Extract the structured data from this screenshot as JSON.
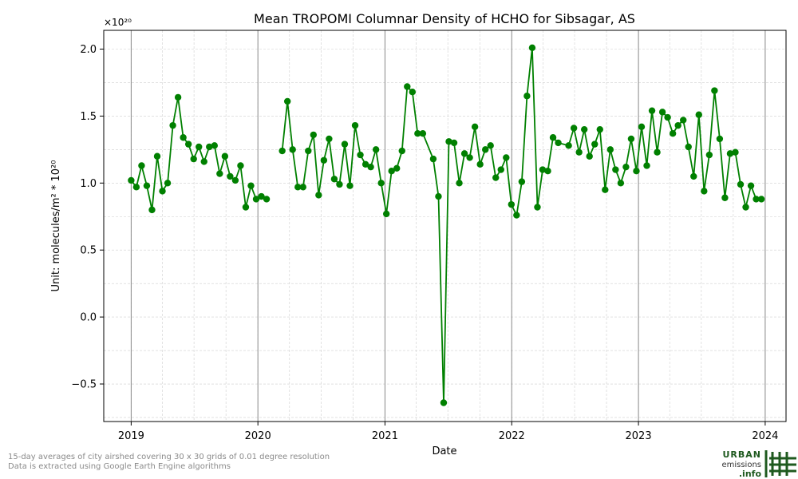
{
  "chart_data": {
    "type": "line",
    "title": "Mean TROPOMI Columnar Density of HCHO for Sibsagar, AS",
    "xlabel": "Date",
    "ylabel": "Unit: molecules/m² * 10²⁰",
    "y_offset_text": "×10²⁰",
    "xlim": [
      "2018-10-14",
      "2024-03-01"
    ],
    "ylim": [
      -0.78,
      2.14
    ],
    "x_ticks": [
      "2019",
      "2020",
      "2021",
      "2022",
      "2023",
      "2024"
    ],
    "y_ticks": [
      "−0.5",
      "0.0",
      "0.5",
      "1.0",
      "1.5",
      "2.0"
    ],
    "grid": true,
    "line_color": "#008000",
    "series": [
      {
        "segments": [
          {
            "dates": [
              "2019-01-01",
              "2019-01-16",
              "2019-01-31",
              "2019-02-15",
              "2019-03-02",
              "2019-03-17",
              "2019-04-01",
              "2019-04-16",
              "2019-05-01",
              "2019-05-16",
              "2019-05-31",
              "2019-06-15",
              "2019-06-30",
              "2019-07-15",
              "2019-07-30",
              "2019-08-14",
              "2019-08-29",
              "2019-09-13",
              "2019-09-28",
              "2019-10-13",
              "2019-10-28",
              "2019-11-12",
              "2019-11-27",
              "2019-12-12",
              "2019-12-27",
              "2020-01-11",
              "2020-01-26"
            ],
            "values": [
              1.02,
              0.97,
              1.13,
              0.98,
              0.8,
              1.2,
              0.94,
              1.0,
              1.43,
              1.64,
              1.34,
              1.29,
              1.18,
              1.27,
              1.16,
              1.27,
              1.28,
              1.07,
              1.2,
              1.05,
              1.02,
              1.13,
              0.82,
              0.98,
              0.88,
              0.9,
              0.88
            ]
          },
          {
            "dates": [
              "2020-03-11",
              "2020-03-26",
              "2020-04-10",
              "2020-04-25",
              "2020-05-10",
              "2020-05-25",
              "2020-06-09",
              "2020-06-24",
              "2020-07-09",
              "2020-07-24",
              "2020-08-08",
              "2020-08-23",
              "2020-09-07",
              "2020-09-22",
              "2020-10-07",
              "2020-10-22",
              "2020-11-06",
              "2020-11-21",
              "2020-12-06",
              "2020-12-21",
              "2021-01-05",
              "2021-01-20",
              "2021-02-04",
              "2021-02-19",
              "2021-03-06",
              "2021-03-21",
              "2021-04-05",
              "2021-04-20",
              "2021-05-20",
              "2021-06-04",
              "2021-06-19",
              "2021-07-04",
              "2021-07-19",
              "2021-08-03",
              "2021-08-18",
              "2021-09-02",
              "2021-09-17",
              "2021-10-02",
              "2021-10-17",
              "2021-11-01",
              "2021-11-16",
              "2021-12-01",
              "2021-12-16",
              "2021-12-31",
              "2022-01-15",
              "2022-01-30",
              "2022-02-14",
              "2022-03-01",
              "2022-03-16",
              "2022-03-31",
              "2022-04-15",
              "2022-04-30",
              "2022-05-15",
              "2022-06-14",
              "2022-06-29",
              "2022-07-14",
              "2022-07-29",
              "2022-08-13",
              "2022-08-28",
              "2022-09-12",
              "2022-09-27",
              "2022-10-12",
              "2022-10-27",
              "2022-11-11",
              "2022-11-26",
              "2022-12-11",
              "2022-12-26",
              "2023-01-10",
              "2023-01-25",
              "2023-02-09",
              "2023-02-24",
              "2023-03-11",
              "2023-03-26",
              "2023-04-10",
              "2023-04-25",
              "2023-05-10",
              "2023-05-25",
              "2023-06-09",
              "2023-06-24",
              "2023-07-09",
              "2023-07-24",
              "2023-08-08",
              "2023-08-23",
              "2023-09-07",
              "2023-09-22",
              "2023-10-07",
              "2023-10-22",
              "2023-11-06",
              "2023-11-21",
              "2023-12-06",
              "2023-12-21"
            ],
            "values": [
              1.24,
              1.61,
              1.25,
              0.97,
              0.97,
              1.24,
              1.36,
              0.91,
              1.17,
              1.33,
              1.03,
              0.99,
              1.29,
              0.98,
              1.43,
              1.21,
              1.14,
              1.12,
              1.25,
              1.0,
              0.77,
              1.09,
              1.11,
              1.24,
              1.72,
              1.68,
              1.37,
              1.37,
              1.18,
              0.9,
              -0.64,
              1.31,
              1.3,
              1.0,
              1.22,
              1.19,
              1.42,
              1.14,
              1.25,
              1.28,
              1.04,
              1.1,
              1.19,
              0.84,
              0.76,
              1.01,
              1.65,
              2.01,
              0.82,
              1.1,
              1.09,
              1.34,
              1.3,
              1.28,
              1.41,
              1.23,
              1.4,
              1.2,
              1.29,
              1.4,
              0.95,
              1.25,
              1.1,
              1.0,
              1.12,
              1.33,
              1.09,
              1.42,
              1.13,
              1.54,
              1.23,
              1.53,
              1.49,
              1.37,
              1.43,
              1.47,
              1.27,
              1.05,
              1.51,
              0.94,
              1.21,
              1.69,
              1.33,
              0.89,
              1.22,
              1.23,
              0.99,
              0.82,
              0.98,
              0.88,
              0.88
            ]
          }
        ]
      }
    ]
  },
  "footer": {
    "note_line1": "15-day averages of city airshed covering 30 x 30 grids of 0.01 degree resolution",
    "note_line2": "Data is extracted using Google Earth Engine algorithms"
  },
  "logo": {
    "line1": "URBAN",
    "line2": "emissions",
    "line3": ".info",
    "color": "#1f5a1f"
  }
}
